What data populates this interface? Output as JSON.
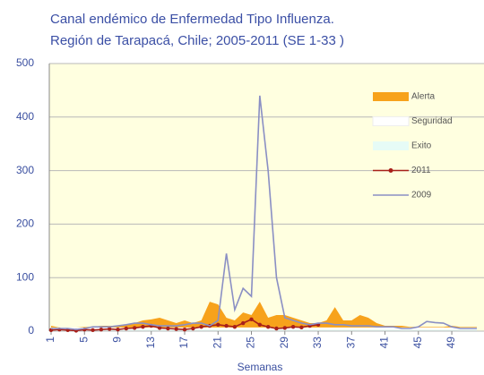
{
  "chart_data": {
    "type": "endemic-channel",
    "title": [
      "Canal endémico de Enfermedad Tipo Influenza.",
      "Región de Tarapacá, Chile; 2005-2011 (SE 1-33 )"
    ],
    "x_label": "Semanas",
    "x": [
      1,
      2,
      3,
      4,
      5,
      6,
      7,
      8,
      9,
      10,
      11,
      12,
      13,
      14,
      15,
      16,
      17,
      18,
      19,
      20,
      21,
      22,
      23,
      24,
      25,
      26,
      27,
      28,
      29,
      30,
      31,
      32,
      33,
      34,
      35,
      36,
      37,
      38,
      39,
      40,
      41,
      42,
      43,
      44,
      45,
      46,
      47,
      48,
      49,
      50,
      51,
      52
    ],
    "xlim": [
      1,
      52
    ],
    "xticks": [
      1,
      5,
      9,
      13,
      17,
      21,
      25,
      29,
      33,
      37,
      41,
      45,
      49
    ],
    "ylim": [
      0,
      500
    ],
    "yticks": [
      0,
      100,
      200,
      300,
      400,
      500
    ],
    "grid": true,
    "legend": "right",
    "areas": [
      {
        "name": "Exito",
        "color": "#e6fbf6",
        "values": [
          3,
          3,
          3,
          3,
          3,
          3,
          3,
          3,
          3,
          3,
          3,
          3,
          3,
          3,
          3,
          3,
          3,
          3,
          3,
          3,
          3,
          3,
          3,
          3,
          3,
          3,
          3,
          3,
          3,
          3,
          3,
          3,
          3,
          3,
          3,
          3,
          3,
          3,
          3,
          3,
          3,
          3,
          3,
          3,
          3,
          3,
          3,
          3,
          3,
          3,
          3,
          3
        ]
      },
      {
        "name": "Seguridad",
        "color": "#ffffff",
        "values": [
          4,
          4,
          4,
          4,
          4,
          4,
          4,
          4,
          4,
          4,
          4,
          4,
          4,
          4,
          4,
          4,
          4,
          4,
          4,
          4,
          4,
          4,
          4,
          4,
          4,
          4,
          4,
          4,
          4,
          4,
          4,
          4,
          4,
          4,
          4,
          4,
          4,
          4,
          4,
          4,
          4,
          4,
          4,
          4,
          4,
          4,
          4,
          4,
          4,
          4,
          4,
          4
        ]
      },
      {
        "name": "Alerta",
        "color": "#f7a21b",
        "values": [
          3,
          0,
          0,
          0,
          1,
          1,
          3,
          3,
          3,
          5,
          8,
          13,
          15,
          18,
          13,
          8,
          13,
          8,
          13,
          48,
          43,
          18,
          13,
          28,
          23,
          48,
          18,
          23,
          23,
          18,
          13,
          8,
          8,
          13,
          38,
          13,
          13,
          23,
          18,
          8,
          3,
          3,
          3,
          1,
          1,
          1,
          1,
          1,
          3,
          1,
          1,
          1
        ]
      }
    ],
    "series": [
      {
        "name": "2011",
        "color": "#a8201a",
        "marker": true,
        "values": [
          2,
          3,
          2,
          1,
          3,
          2,
          3,
          4,
          3,
          5,
          6,
          8,
          10,
          6,
          5,
          4,
          3,
          5,
          8,
          10,
          12,
          10,
          8,
          15,
          22,
          12,
          8,
          5,
          6,
          8,
          7,
          10,
          12,
          null,
          null,
          null,
          null,
          null,
          null,
          null,
          null,
          null,
          null,
          null,
          null,
          null,
          null,
          null,
          null,
          null,
          null,
          null
        ]
      },
      {
        "name": "2009",
        "color": "#8a8fc4",
        "marker": false,
        "values": [
          5,
          5,
          5,
          3,
          5,
          8,
          8,
          8,
          10,
          12,
          15,
          15,
          12,
          10,
          10,
          10,
          12,
          15,
          15,
          10,
          20,
          145,
          40,
          80,
          65,
          440,
          300,
          100,
          25,
          20,
          15,
          12,
          15,
          15,
          12,
          12,
          10,
          10,
          10,
          8,
          8,
          8,
          5,
          5,
          8,
          18,
          16,
          15,
          8,
          5,
          5,
          5
        ]
      }
    ]
  }
}
